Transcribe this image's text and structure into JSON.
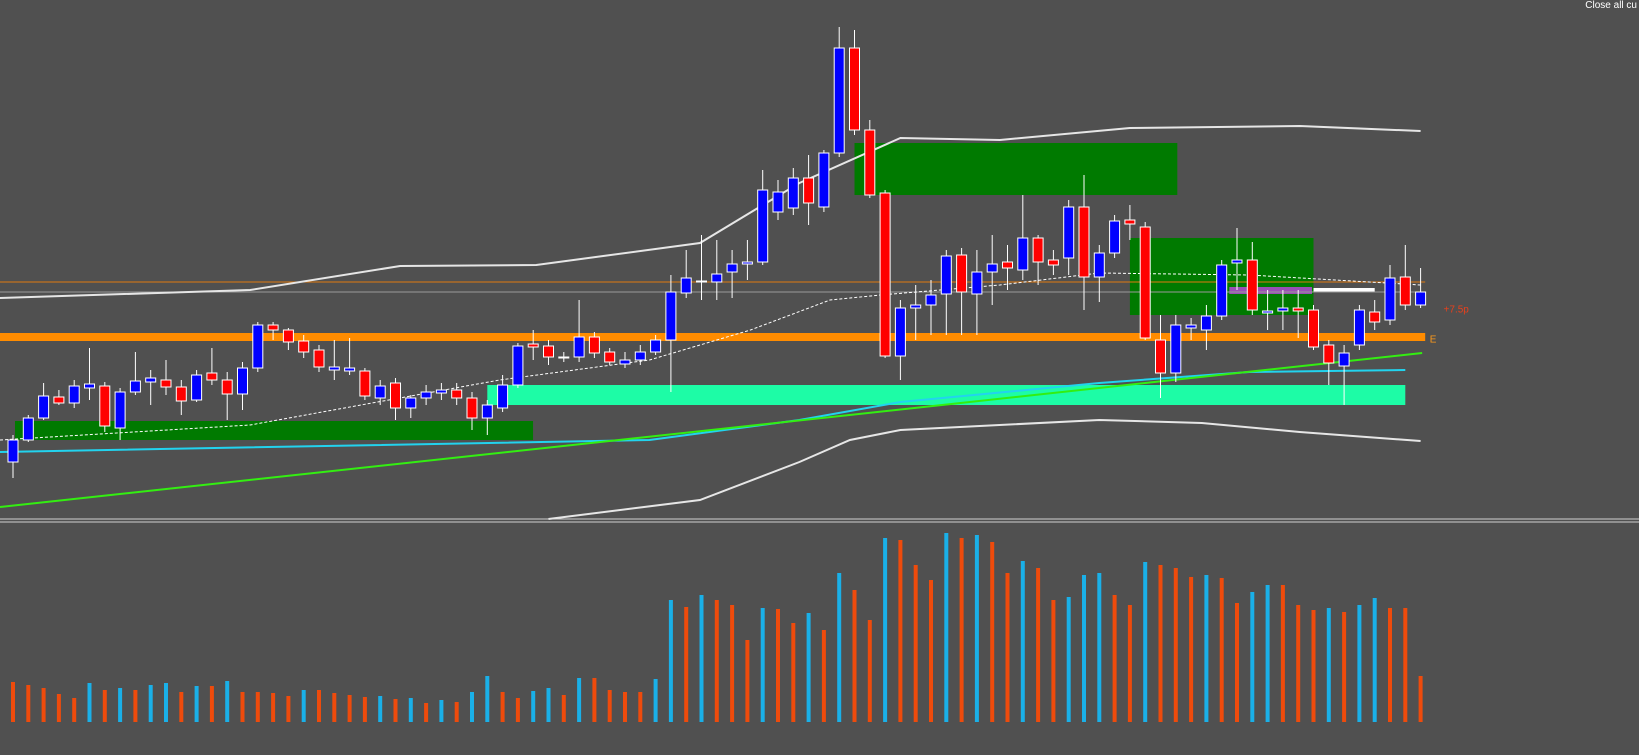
{
  "toolbar": {
    "button": "Close all cu"
  },
  "chart_data": [
    {
      "type": "candlestick",
      "ylim": [
        0,
        520
      ],
      "up_color": "#0000ff",
      "down_color": "#ff0000",
      "wick_color": "#ffffff",
      "open": [
        58,
        80,
        102,
        123,
        117,
        132,
        134,
        92,
        128,
        138,
        140,
        133,
        120,
        147,
        140,
        126,
        152,
        195,
        190,
        179,
        170,
        150,
        149,
        149,
        122,
        137,
        112,
        122,
        127,
        130,
        122,
        102,
        112,
        135,
        176,
        174,
        162,
        163,
        183,
        168,
        156,
        160,
        168,
        180,
        227,
        238,
        238,
        248,
        256,
        258,
        308,
        312,
        342,
        313,
        367,
        472,
        390,
        327,
        164,
        212,
        215,
        226,
        265,
        226,
        248,
        258,
        250,
        282,
        260,
        262,
        313,
        243,
        267,
        300,
        293,
        180,
        147,
        192,
        190,
        204,
        257,
        260,
        207,
        209,
        212,
        210,
        175,
        154,
        175,
        208,
        200,
        243,
        215
      ],
      "high": [
        85,
        105,
        137,
        130,
        140,
        172,
        138,
        132,
        168,
        150,
        160,
        140,
        150,
        172,
        148,
        158,
        198,
        198,
        192,
        185,
        175,
        180,
        182,
        152,
        140,
        142,
        125,
        135,
        137,
        137,
        128,
        120,
        145,
        177,
        190,
        180,
        168,
        220,
        188,
        172,
        168,
        175,
        185,
        245,
        270,
        285,
        280,
        270,
        280,
        350,
        340,
        352,
        365,
        370,
        493,
        490,
        400,
        330,
        220,
        235,
        240,
        270,
        272,
        270,
        285,
        275,
        325,
        285,
        270,
        320,
        345,
        275,
        305,
        315,
        298,
        205,
        205,
        202,
        215,
        260,
        292,
        278,
        230,
        230,
        230,
        215,
        180,
        175,
        215,
        220,
        255,
        275,
        252
      ],
      "low": [
        42,
        78,
        100,
        115,
        112,
        120,
        88,
        80,
        125,
        115,
        125,
        105,
        118,
        135,
        100,
        110,
        148,
        180,
        170,
        162,
        148,
        140,
        145,
        120,
        115,
        100,
        102,
        115,
        120,
        115,
        90,
        85,
        108,
        132,
        160,
        155,
        158,
        158,
        162,
        155,
        152,
        155,
        165,
        128,
        222,
        220,
        220,
        222,
        240,
        255,
        300,
        305,
        295,
        308,
        363,
        385,
        322,
        162,
        140,
        180,
        185,
        185,
        185,
        185,
        215,
        230,
        240,
        235,
        245,
        245,
        210,
        218,
        262,
        280,
        180,
        122,
        138,
        180,
        170,
        200,
        230,
        205,
        190,
        190,
        182,
        170,
        135,
        115,
        170,
        190,
        195,
        210,
        212
      ],
      "close": [
        80,
        102,
        124,
        117,
        134,
        136,
        94,
        128,
        139,
        142,
        133,
        119,
        145,
        140,
        126,
        152,
        195,
        190,
        178,
        168,
        153,
        153,
        152,
        124,
        134,
        112,
        122,
        128,
        130,
        122,
        102,
        115,
        135,
        174,
        173,
        163,
        163,
        183,
        167,
        158,
        160,
        168,
        180,
        228,
        242,
        239,
        246,
        256,
        258,
        330,
        328,
        342,
        317,
        367,
        472,
        390,
        325,
        164,
        212,
        215,
        225,
        264,
        228,
        248,
        256,
        252,
        282,
        258,
        255,
        313,
        243,
        267,
        299,
        296,
        182,
        147,
        195,
        195,
        204,
        255,
        260,
        210,
        209,
        212,
        209,
        173,
        157,
        167,
        210,
        198,
        242,
        215,
        228
      ],
      "lines": [
        {
          "color": "#e6e6e6",
          "x": [
            -0.85,
            15.5,
            25.3,
            34.2,
            44.9,
            51.4,
            58,
            64.5,
            73,
            84.1,
            92
          ],
          "values": [
            222,
            230,
            254,
            255,
            277,
            337,
            382,
            380,
            392,
            394,
            389
          ]
        },
        {
          "color": "#e6e6e6",
          "x": [
            35,
            44.9,
            51.4,
            54.7,
            58,
            71,
            77.7,
            84.1,
            92
          ],
          "values": [
            1,
            20,
            58,
            80,
            90,
            100,
            97,
            88,
            79
          ]
        },
        {
          "color": "#ffffff",
          "dashed": true,
          "x": [
            -0.85,
            15.5,
            31.8,
            41.6,
            48.2,
            53.4,
            56.7,
            64.5,
            71,
            80.8,
            92
          ],
          "values": [
            80,
            95,
            140,
            160,
            190,
            220,
            225,
            235,
            247,
            245,
            235
          ]
        },
        {
          "color": "#22d3ee",
          "x": [
            -0.85,
            41.6,
            51.4,
            58,
            71,
            80.8,
            91
          ],
          "values": [
            68,
            80,
            100,
            118,
            137,
            148,
            150
          ]
        },
        {
          "color": "#33ee11",
          "x": [
            -0.85,
            92.1
          ],
          "values": [
            13,
            167
          ]
        }
      ],
      "levels": [
        {
          "value": 183,
          "color": "#ff8c00"
        },
        {
          "value": 238,
          "color": "#e07a10"
        },
        {
          "value": 228,
          "color": "#9a9a9a"
        }
      ],
      "zones": [
        {
          "x": [
            0.13,
            33.99
          ],
          "y": [
            80,
            99
          ],
          "color": "#007a00"
        },
        {
          "x": [
            31,
            91
          ],
          "y": [
            115,
            135
          ],
          "color": "#1dfca6"
        },
        {
          "x": [
            55,
            76.1
          ],
          "y": [
            325,
            377
          ],
          "color": "#007a00"
        },
        {
          "x": [
            73,
            85
          ],
          "y": [
            205,
            282
          ],
          "color": "#007a00"
        },
        {
          "x": [
            79.5,
            84.9
          ],
          "y": [
            226,
            233
          ],
          "color": "#9b4fb5"
        },
        {
          "x": [
            85,
            89
          ],
          "y": [
            228,
            232
          ],
          "color": "#ffffff"
        }
      ],
      "annotations": [
        {
          "text": "+7.5p",
          "x": 93.5,
          "value": 210,
          "color": "#e8401c"
        },
        {
          "text": "E",
          "x": 92.6,
          "value": 180,
          "color": "#ff9a1a"
        }
      ]
    },
    {
      "type": "volume",
      "ylim": [
        0,
        202
      ],
      "up_color": "#1ab0e8",
      "down_color": "#ee4b0c",
      "values": [
        40,
        37,
        34,
        28,
        24,
        39,
        32,
        34,
        32,
        37,
        39,
        30,
        36,
        36,
        41,
        30,
        30,
        29,
        26,
        32,
        32,
        29,
        27,
        25,
        26,
        23,
        24,
        19,
        22,
        20,
        30,
        46,
        30,
        24,
        31,
        34,
        27,
        44,
        44,
        32,
        30,
        30,
        43,
        122,
        115,
        127,
        122,
        117,
        82,
        114,
        113,
        99,
        109,
        92,
        149,
        132,
        102,
        184,
        182,
        157,
        142,
        189,
        184,
        187,
        180,
        149,
        161,
        154,
        122,
        125,
        147,
        149,
        127,
        117,
        160,
        157,
        154,
        145,
        147,
        144,
        119,
        130,
        137,
        137,
        117,
        112,
        114,
        110,
        117,
        124,
        114,
        114,
        46
      ]
    }
  ]
}
